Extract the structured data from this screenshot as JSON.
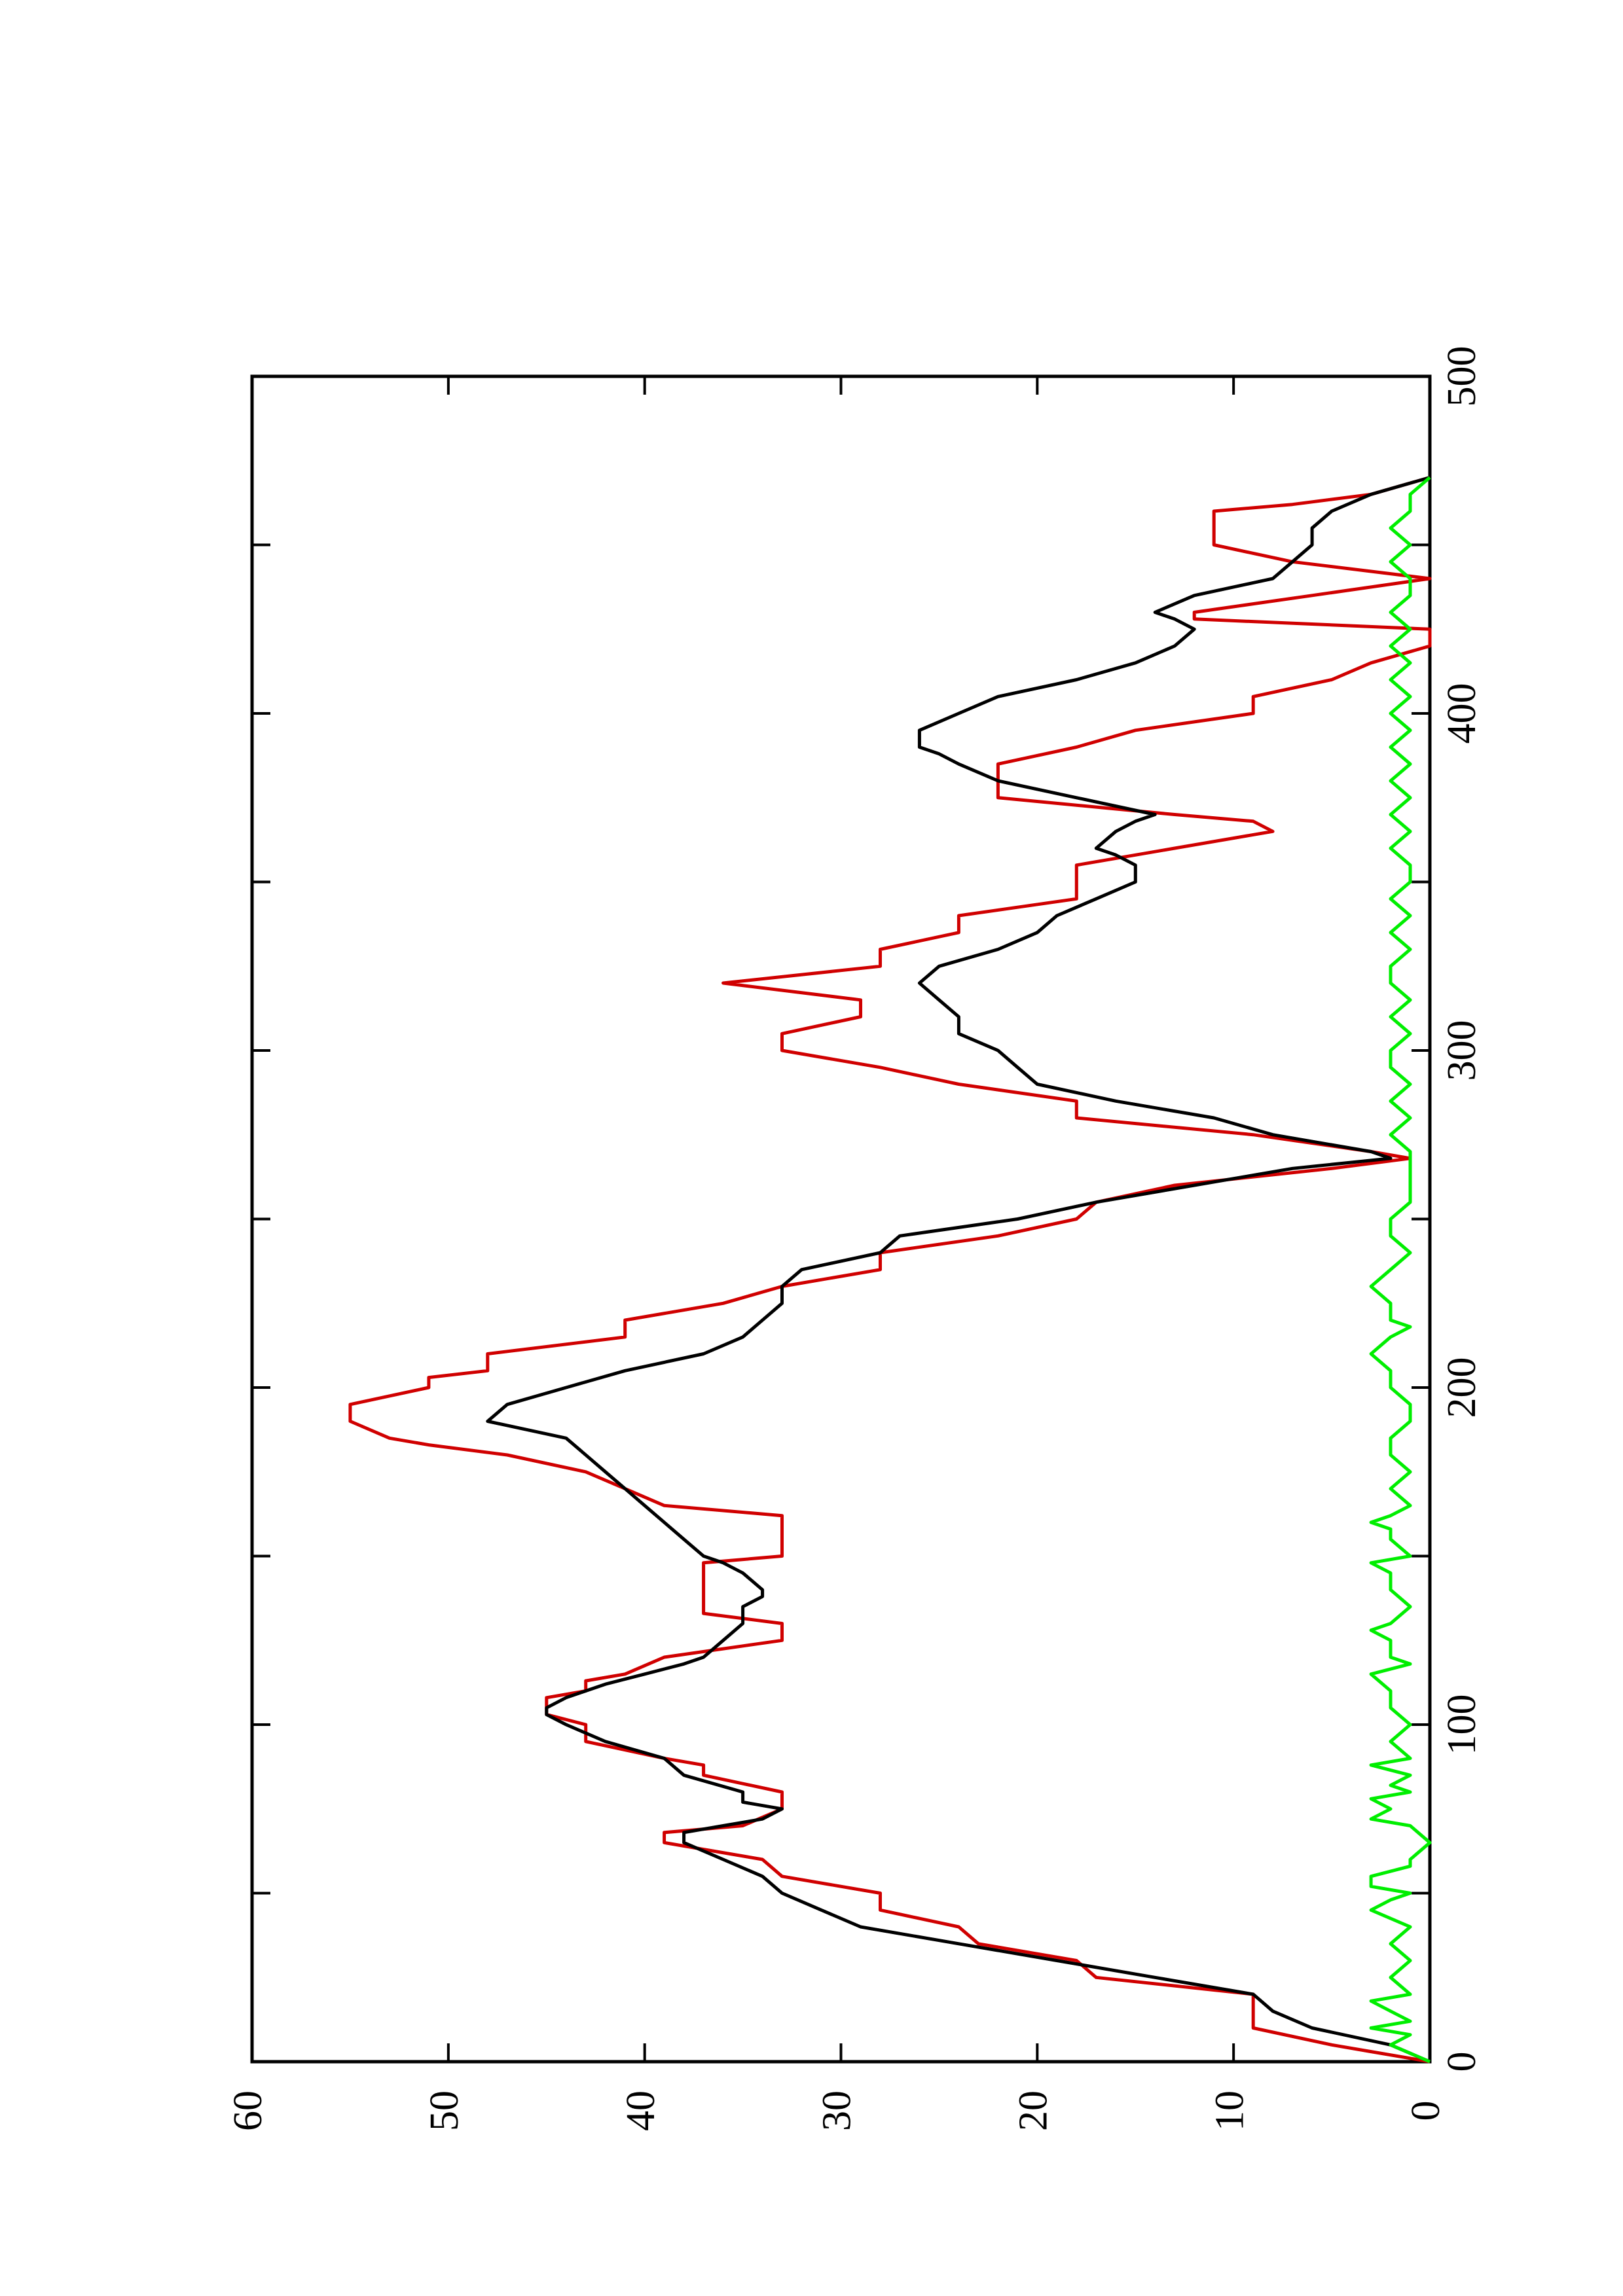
{
  "chart_data": {
    "type": "line",
    "orientation": "rotated 90 degrees counter-clockwise",
    "title": "",
    "xlabel": "",
    "ylabel": "",
    "xlim": [
      0,
      500
    ],
    "ylim": [
      0,
      60
    ],
    "xticks": [
      0,
      100,
      200,
      300,
      400,
      500
    ],
    "xtick_labels": [
      "0",
      "100",
      "200",
      "300",
      "400",
      "500"
    ],
    "x_minor_ticks": [
      50,
      150,
      250,
      350,
      450
    ],
    "yticks": [
      0,
      10,
      20,
      30,
      40,
      50,
      60
    ],
    "ytick_labels": [
      "0",
      "10",
      "20",
      "30",
      "40",
      "50",
      "60"
    ],
    "grid": false,
    "legend": "none",
    "series": [
      {
        "color": "#d00000",
        "style": "piecewise linear",
        "x": [
          0,
          3,
          5,
          10,
          20,
          25,
          30,
          35,
          40,
          45,
          50,
          55,
          60,
          65,
          68,
          70,
          75,
          78,
          80,
          85,
          88,
          90,
          95,
          100,
          103,
          105,
          108,
          110,
          113,
          115,
          120,
          125,
          128,
          130,
          133,
          135,
          140,
          145,
          148,
          150,
          155,
          160,
          162,
          165,
          170,
          175,
          180,
          183,
          185,
          190,
          195,
          200,
          203,
          205,
          210,
          215,
          220,
          225,
          230,
          235,
          240,
          245,
          250,
          255,
          260,
          265,
          268,
          270,
          275,
          280,
          285,
          290,
          295,
          300,
          305,
          310,
          313,
          315,
          320,
          325,
          330,
          335,
          340,
          345,
          350,
          355,
          360,
          365,
          368,
          370,
          375,
          380,
          382,
          385,
          390,
          395,
          400,
          405,
          410,
          415,
          420,
          425,
          428,
          430,
          435,
          440,
          445,
          450,
          455,
          460,
          462,
          465,
          470
        ],
        "y": [
          0,
          3,
          5,
          9,
          9,
          17,
          18,
          23,
          24,
          28,
          28,
          33,
          34,
          39,
          39,
          35,
          33,
          33,
          33,
          37,
          37,
          39,
          43,
          43,
          45,
          45,
          45,
          43,
          43,
          41,
          39,
          33,
          33,
          33,
          37,
          37,
          37,
          37,
          37,
          33,
          33,
          33,
          33,
          39,
          41,
          43,
          47,
          51,
          53,
          55,
          55,
          51,
          51,
          48,
          48,
          41,
          41,
          36,
          33,
          28,
          28,
          22,
          18,
          17,
          13,
          5,
          1,
          3,
          9,
          18,
          18,
          24,
          28,
          33,
          33,
          29,
          29,
          29,
          36,
          28,
          28,
          24,
          24,
          18,
          18,
          18,
          13,
          8,
          9,
          13,
          22,
          22,
          22,
          22,
          18,
          15,
          9,
          9,
          5,
          3,
          0,
          0,
          12,
          12,
          6,
          0,
          7,
          11,
          11,
          11,
          7,
          3,
          0
        ]
      },
      {
        "color": "#000000",
        "style": "smooth line",
        "x": [
          0,
          5,
          10,
          15,
          20,
          25,
          30,
          35,
          40,
          45,
          50,
          55,
          60,
          65,
          68,
          70,
          72,
          75,
          77,
          80,
          85,
          90,
          95,
          100,
          103,
          105,
          108,
          110,
          112,
          115,
          118,
          120,
          125,
          130,
          133,
          135,
          138,
          140,
          145,
          148,
          150,
          155,
          160,
          165,
          170,
          175,
          180,
          185,
          190,
          195,
          200,
          205,
          210,
          215,
          220,
          225,
          230,
          235,
          240,
          245,
          250,
          255,
          260,
          265,
          268,
          270,
          275,
          280,
          285,
          290,
          295,
          300,
          305,
          310,
          315,
          320,
          325,
          330,
          335,
          340,
          345,
          350,
          353,
          355,
          358,
          360,
          365,
          368,
          370,
          375,
          380,
          385,
          388,
          390,
          395,
          400,
          405,
          410,
          415,
          420,
          425,
          428,
          430,
          435,
          440,
          445,
          450,
          455,
          460,
          465,
          470
        ],
        "y": [
          0,
          2,
          6,
          8,
          9,
          14,
          19,
          24,
          29,
          31,
          33,
          34,
          36,
          38,
          38,
          36,
          34,
          33,
          35,
          35,
          38,
          39,
          42,
          44,
          45,
          45,
          44,
          43,
          42,
          40,
          38,
          37,
          36,
          35,
          35,
          35,
          34,
          34,
          35,
          36,
          37,
          38,
          39,
          40,
          41,
          42,
          43,
          44,
          48,
          47,
          44,
          41,
          37,
          35,
          34,
          33,
          33,
          32,
          28,
          27,
          21,
          17,
          12,
          7,
          2,
          3,
          8,
          11,
          16,
          20,
          21,
          22,
          24,
          24,
          25,
          26,
          25,
          22,
          20,
          19,
          17,
          15,
          15,
          15,
          16,
          17,
          16,
          15,
          14,
          18,
          22,
          24,
          25,
          26,
          26,
          24,
          22,
          18,
          15,
          13,
          12,
          13,
          14,
          12,
          8,
          7,
          6,
          6,
          5,
          3,
          0
        ]
      },
      {
        "color": "#00ee00",
        "style": "noisy line",
        "x": [
          0,
          5,
          8,
          10,
          12,
          15,
          18,
          20,
          25,
          30,
          35,
          40,
          45,
          48,
          50,
          52,
          55,
          58,
          60,
          65,
          70,
          72,
          75,
          78,
          80,
          82,
          85,
          88,
          90,
          95,
          100,
          105,
          110,
          115,
          118,
          120,
          125,
          128,
          130,
          135,
          140,
          145,
          148,
          150,
          155,
          158,
          160,
          162,
          165,
          170,
          175,
          180,
          185,
          190,
          195,
          200,
          205,
          210,
          215,
          218,
          220,
          225,
          230,
          235,
          240,
          245,
          250,
          255,
          260,
          265,
          270,
          275,
          280,
          285,
          290,
          295,
          300,
          305,
          310,
          315,
          320,
          325,
          330,
          335,
          340,
          345,
          350,
          355,
          360,
          365,
          370,
          375,
          380,
          385,
          390,
          395,
          400,
          405,
          410,
          415,
          420,
          425,
          430,
          435,
          440,
          445,
          450,
          455,
          460,
          465,
          470
        ],
        "y": [
          0,
          2,
          1,
          3,
          1,
          2,
          3,
          1,
          2,
          1,
          2,
          1,
          3,
          2,
          1,
          3,
          3,
          1,
          1,
          0,
          1,
          3,
          2,
          3,
          1,
          2,
          1,
          3,
          1,
          2,
          1,
          2,
          2,
          3,
          1,
          2,
          2,
          3,
          2,
          1,
          2,
          2,
          3,
          1,
          2,
          2,
          3,
          2,
          1,
          2,
          1,
          2,
          2,
          1,
          1,
          2,
          2,
          3,
          2,
          1,
          2,
          2,
          3,
          2,
          1,
          2,
          2,
          1,
          1,
          1,
          1,
          2,
          1,
          2,
          1,
          2,
          2,
          1,
          2,
          1,
          2,
          2,
          1,
          2,
          1,
          2,
          1,
          1,
          2,
          1,
          2,
          1,
          2,
          1,
          2,
          1,
          2,
          1,
          2,
          1,
          2,
          1,
          2,
          1,
          1,
          2,
          1,
          2,
          1,
          1,
          0
        ]
      }
    ]
  }
}
